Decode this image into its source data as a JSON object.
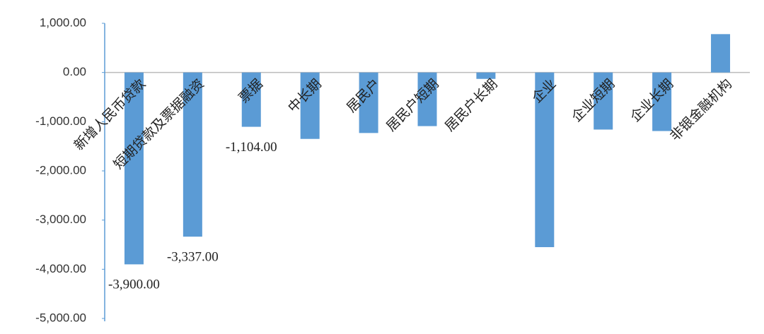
{
  "chart_data": {
    "type": "bar",
    "categories": [
      "新增人民币贷款",
      "短期贷款及票据融资",
      "票据",
      "中长期",
      "居民户",
      "居民户短期",
      "居民户长期",
      "企业",
      "企业短期",
      "企业长期",
      "非银金融机构"
    ],
    "values": [
      -3900,
      -3337,
      -1104,
      -1350,
      -1230,
      -1090,
      -130,
      -3550,
      -1160,
      -1190,
      780
    ],
    "value_labels": [
      "-3,900.00",
      "-3,337.00",
      "-1,104.00",
      null,
      null,
      null,
      null,
      null,
      null,
      null,
      null
    ],
    "color": "#5b9bd5",
    "ylim": [
      -5000,
      1000
    ],
    "yticks": [
      {
        "value": -5000,
        "label": "-5,000.00"
      },
      {
        "value": -4000,
        "label": "-4,000.00"
      },
      {
        "value": -3000,
        "label": "-3,000.00"
      },
      {
        "value": -2000,
        "label": "-2,000.00"
      },
      {
        "value": -1000,
        "label": "-1,000.00"
      },
      {
        "value": 0,
        "label": "0.00"
      },
      {
        "value": 1000,
        "label": "1,000.00"
      }
    ],
    "grid": false
  }
}
